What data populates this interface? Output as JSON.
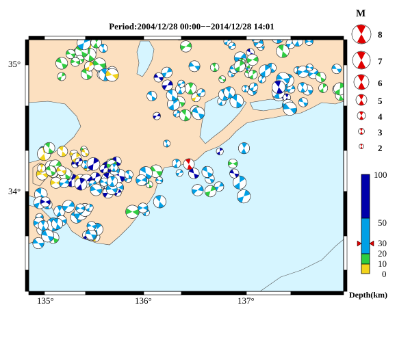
{
  "title": "Period:2004/12/28 00:00−−2014/12/28 14:01",
  "axes": {
    "lat_labels": [
      "35°",
      "34°"
    ],
    "lon_labels": [
      "135°",
      "136°",
      "137°"
    ]
  },
  "legend": {
    "magnitude_title": "M",
    "magnitudes": [
      "8",
      "7",
      "6",
      "5",
      "4",
      "3",
      "2"
    ],
    "depth_title": "Depth(km)",
    "depth_ticks": [
      "100",
      "50",
      "30",
      "20",
      "10",
      "0"
    ],
    "depth_colors": [
      "#0000aa",
      "#00a0e6",
      "#2ecc40",
      "#f2d31b"
    ],
    "event_color": "#e00000"
  },
  "colors": {
    "land": "#fce0c0",
    "sea": "#d6f5ff",
    "frame": "#000000"
  }
}
